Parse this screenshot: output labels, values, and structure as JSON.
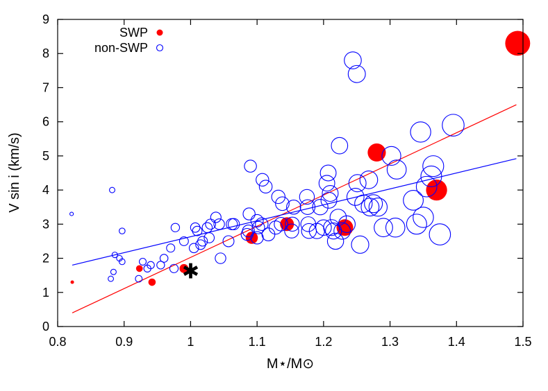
{
  "chart_data": {
    "type": "scatter",
    "xlabel": "M⋆/M⊙",
    "ylabel": "V sin i (km/s)",
    "xlim": [
      0.8,
      1.5
    ],
    "ylim": [
      0,
      9
    ],
    "x_ticks": [
      "0.8",
      "0.9",
      "1",
      "1.1",
      "1.2",
      "1.3",
      "1.4",
      "1.5"
    ],
    "y_ticks": [
      "0",
      "1",
      "2",
      "3",
      "4",
      "5",
      "6",
      "7",
      "8",
      "9"
    ],
    "grid": false,
    "legend_position": "top-left",
    "series": [
      {
        "name": "SWP",
        "marker": "filled-circle",
        "color": "#ff0000",
        "points": [
          {
            "x": 0.822,
            "y": 1.3
          },
          {
            "x": 0.923,
            "y": 1.7
          },
          {
            "x": 0.942,
            "y": 1.3
          },
          {
            "x": 0.99,
            "y": 1.7
          },
          {
            "x": 1.092,
            "y": 2.6
          },
          {
            "x": 1.145,
            "y": 3.0
          },
          {
            "x": 1.232,
            "y": 2.9
          },
          {
            "x": 1.28,
            "y": 5.1
          },
          {
            "x": 1.37,
            "y": 4.0
          },
          {
            "x": 1.492,
            "y": 8.3
          }
        ]
      },
      {
        "name": "non-SWP",
        "marker": "open-circle",
        "color": "#0000ff",
        "points": [
          {
            "x": 0.821,
            "y": 3.3
          },
          {
            "x": 0.88,
            "y": 1.4
          },
          {
            "x": 0.882,
            "y": 4.0
          },
          {
            "x": 0.884,
            "y": 1.6
          },
          {
            "x": 0.886,
            "y": 2.1
          },
          {
            "x": 0.893,
            "y": 2.0
          },
          {
            "x": 0.897,
            "y": 1.9
          },
          {
            "x": 0.897,
            "y": 2.8
          },
          {
            "x": 0.922,
            "y": 1.4
          },
          {
            "x": 0.928,
            "y": 1.9
          },
          {
            "x": 0.935,
            "y": 1.7
          },
          {
            "x": 0.94,
            "y": 1.8
          },
          {
            "x": 0.955,
            "y": 1.8
          },
          {
            "x": 0.96,
            "y": 2.0
          },
          {
            "x": 0.97,
            "y": 2.3
          },
          {
            "x": 0.975,
            "y": 1.7
          },
          {
            "x": 0.977,
            "y": 2.9
          },
          {
            "x": 0.99,
            "y": 2.5
          },
          {
            "x": 1.005,
            "y": 2.3
          },
          {
            "x": 1.007,
            "y": 2.9
          },
          {
            "x": 1.01,
            "y": 2.8
          },
          {
            "x": 1.015,
            "y": 2.4
          },
          {
            "x": 1.018,
            "y": 2.5
          },
          {
            "x": 1.025,
            "y": 2.9
          },
          {
            "x": 1.028,
            "y": 2.6
          },
          {
            "x": 1.03,
            "y": 3.0
          },
          {
            "x": 1.038,
            "y": 3.2
          },
          {
            "x": 1.043,
            "y": 3.0
          },
          {
            "x": 1.045,
            "y": 2.0
          },
          {
            "x": 1.057,
            "y": 2.5
          },
          {
            "x": 1.062,
            "y": 3.0
          },
          {
            "x": 1.065,
            "y": 3.0
          },
          {
            "x": 1.085,
            "y": 2.7
          },
          {
            "x": 1.087,
            "y": 2.8
          },
          {
            "x": 1.088,
            "y": 3.3
          },
          {
            "x": 1.09,
            "y": 4.7
          },
          {
            "x": 1.1,
            "y": 2.6
          },
          {
            "x": 1.1,
            "y": 3.1
          },
          {
            "x": 1.102,
            "y": 2.9
          },
          {
            "x": 1.107,
            "y": 3.0
          },
          {
            "x": 1.108,
            "y": 4.3
          },
          {
            "x": 1.113,
            "y": 4.1
          },
          {
            "x": 1.117,
            "y": 2.7
          },
          {
            "x": 1.128,
            "y": 2.9
          },
          {
            "x": 1.132,
            "y": 3.8
          },
          {
            "x": 1.136,
            "y": 3.0
          },
          {
            "x": 1.138,
            "y": 3.6
          },
          {
            "x": 1.152,
            "y": 2.8
          },
          {
            "x": 1.153,
            "y": 3.0
          },
          {
            "x": 1.155,
            "y": 3.5
          },
          {
            "x": 1.175,
            "y": 3.8
          },
          {
            "x": 1.176,
            "y": 3.5
          },
          {
            "x": 1.177,
            "y": 3.0
          },
          {
            "x": 1.178,
            "y": 2.8
          },
          {
            "x": 1.19,
            "y": 2.8
          },
          {
            "x": 1.195,
            "y": 3.5
          },
          {
            "x": 1.2,
            "y": 2.9
          },
          {
            "x": 1.205,
            "y": 4.2
          },
          {
            "x": 1.207,
            "y": 4.5
          },
          {
            "x": 1.208,
            "y": 3.7
          },
          {
            "x": 1.21,
            "y": 3.9
          },
          {
            "x": 1.212,
            "y": 2.9
          },
          {
            "x": 1.215,
            "y": 2.8
          },
          {
            "x": 1.218,
            "y": 2.5
          },
          {
            "x": 1.222,
            "y": 3.2
          },
          {
            "x": 1.224,
            "y": 5.3
          },
          {
            "x": 1.228,
            "y": 2.8
          },
          {
            "x": 1.235,
            "y": 3.0
          },
          {
            "x": 1.244,
            "y": 7.8
          },
          {
            "x": 1.248,
            "y": 3.8
          },
          {
            "x": 1.25,
            "y": 7.4
          },
          {
            "x": 1.251,
            "y": 4.2
          },
          {
            "x": 1.255,
            "y": 2.4
          },
          {
            "x": 1.26,
            "y": 3.6
          },
          {
            "x": 1.268,
            "y": 4.3
          },
          {
            "x": 1.27,
            "y": 3.5
          },
          {
            "x": 1.275,
            "y": 3.6
          },
          {
            "x": 1.282,
            "y": 3.5
          },
          {
            "x": 1.29,
            "y": 2.9
          },
          {
            "x": 1.302,
            "y": 5.0
          },
          {
            "x": 1.308,
            "y": 2.9
          },
          {
            "x": 1.31,
            "y": 4.6
          },
          {
            "x": 1.335,
            "y": 3.7
          },
          {
            "x": 1.34,
            "y": 3.0
          },
          {
            "x": 1.346,
            "y": 5.7
          },
          {
            "x": 1.35,
            "y": 3.2
          },
          {
            "x": 1.355,
            "y": 4.1
          },
          {
            "x": 1.362,
            "y": 4.4
          },
          {
            "x": 1.365,
            "y": 4.7
          },
          {
            "x": 1.375,
            "y": 2.7
          },
          {
            "x": 1.395,
            "y": 5.9
          }
        ]
      }
    ],
    "fit_lines": [
      {
        "color": "#ff0000",
        "x": [
          0.822,
          1.49
        ],
        "y": [
          0.4,
          6.5
        ]
      },
      {
        "color": "#0000ff",
        "x": [
          0.822,
          1.49
        ],
        "y": [
          1.8,
          4.92
        ]
      }
    ],
    "annotations": [
      {
        "text": "✱",
        "x": 1.0,
        "y": 1.7
      }
    ]
  }
}
